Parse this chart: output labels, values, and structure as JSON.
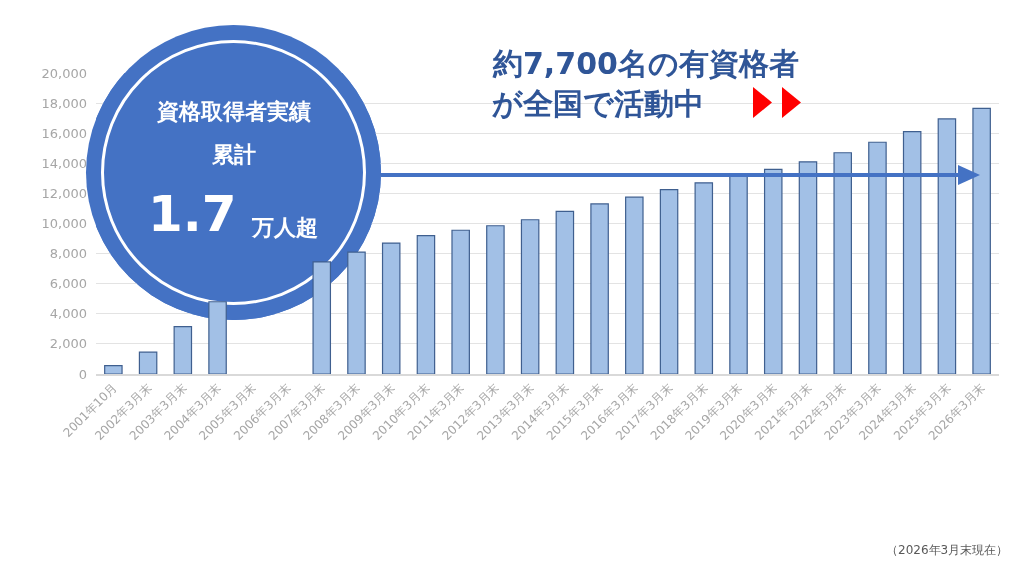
{
  "chart_data": {
    "type": "bar",
    "categories": [
      "2001年10月",
      "2002年3月末",
      "2003年3月末",
      "2004年3月末",
      "2005年3月末",
      "2006年3月末",
      "2007年3月末",
      "2008年3月末",
      "2009年3月末",
      "2010年3月末",
      "2011年3月末",
      "2012年3月末",
      "2013年3月末",
      "2014年3月末",
      "2015年3月末",
      "2016年3月末",
      "2017年3月末",
      "2018年3月末",
      "2019年3月末",
      "2020年3月末",
      "2021年3月末",
      "2022年3月末",
      "2023年3月末",
      "2024年3月末",
      "2025年3月末",
      "2026年3月末"
    ],
    "values": [
      550,
      1450,
      3150,
      4800,
      null,
      null,
      7450,
      8100,
      8700,
      9200,
      9550,
      9850,
      10250,
      10800,
      11300,
      11750,
      12250,
      12700,
      13200,
      13600,
      14100,
      14700,
      15400,
      16100,
      16950,
      17650
    ],
    "color": "#a2c0e6",
    "ylim": [
      0,
      20000
    ],
    "yticks": [
      0,
      {
        "value": 2000,
        "label": "2,000"
      },
      {
        "value": 4000,
        "label": "4,000"
      },
      {
        "value": 6000,
        "label": "6,000"
      },
      {
        "value": 8000,
        "label": "8,000"
      },
      {
        "value": 10000,
        "label": "10,000"
      },
      {
        "value": 12000,
        "label": "12,000"
      },
      {
        "value": 14000,
        "label": "14,000"
      },
      {
        "value": 16000,
        "label": "16,000"
      },
      {
        "value": 18000,
        "label": "18,000"
      },
      {
        "value": 20000,
        "label": "20,000"
      }
    ],
    "grid": "y",
    "annotations": [
      "資格取得者実績",
      "累計",
      "1.7",
      "万人超",
      "約7,700名の有資格者",
      "が全国で活動中",
      "（2026年3月末現在）"
    ]
  }
}
